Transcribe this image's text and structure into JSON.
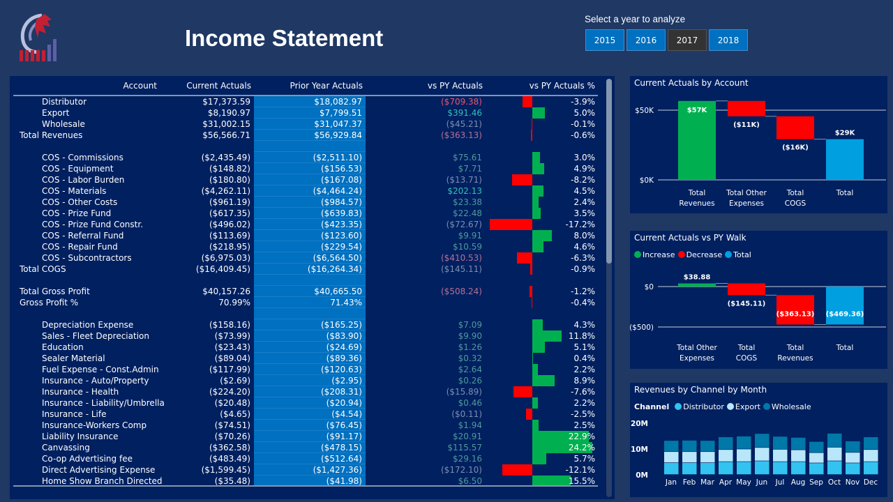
{
  "header": {
    "title": "Income Statement",
    "logo_alt": "company-logo"
  },
  "year_slicer": {
    "label": "Select a year to analyze",
    "years": [
      "2015",
      "2016",
      "2017",
      "2018"
    ],
    "selected": "2017"
  },
  "colors": {
    "pos_strong": "#33c0b8",
    "pos": "#4f9a9a",
    "neg_strong": "#e8566f",
    "neg_mid": "#b87095",
    "neg": "#7d8fb0",
    "increase": "#00b050",
    "decrease": "#ff0000",
    "total": "#009fe0",
    "distributor": "#33c3f0",
    "export": "#b8e6fa",
    "wholesale": "#0078a8"
  },
  "table": {
    "headers": {
      "account": "Account",
      "current": "Current Actuals",
      "prior": "Prior Year Actuals",
      "vs": "vs PY Actuals",
      "pct": "vs PY Actuals %"
    },
    "rows": [
      {
        "account": "Distributor",
        "current": "$17,373.59",
        "prior": "$18,082.97",
        "vs": "($709.38)",
        "vs_color": "neg_strong",
        "pct": "-3.9%",
        "pct_value": -3.9
      },
      {
        "account": "Export",
        "current": "$8,190.97",
        "prior": "$7,799.51",
        "vs": "$391.46",
        "vs_color": "pos_strong",
        "pct": "5.0%",
        "pct_value": 5.0
      },
      {
        "account": "Wholesale",
        "current": "$31,002.15",
        "prior": "$31,047.37",
        "vs": "($45.21)",
        "vs_color": "neg",
        "pct": "-0.1%",
        "pct_value": -0.1
      },
      {
        "account": "Total Revenues",
        "total": true,
        "current": "$56,566.71",
        "prior": "$56,929.84",
        "vs": "($363.13)",
        "vs_color": "neg_mid",
        "pct": "-0.6%",
        "pct_value": -0.6
      },
      {
        "blank": true
      },
      {
        "account": "COS - Commissions",
        "current": "($2,435.49)",
        "prior": "($2,511.10)",
        "vs": "$75.61",
        "vs_color": "pos",
        "pct": "3.0%",
        "pct_value": 3.0
      },
      {
        "account": "COS - Equipment",
        "current": "($148.82)",
        "prior": "($156.53)",
        "vs": "$7.71",
        "vs_color": "pos",
        "pct": "4.9%",
        "pct_value": 4.9
      },
      {
        "account": "COS - Labor Burden",
        "current": "($180.80)",
        "prior": "($167.08)",
        "vs": "($13.71)",
        "vs_color": "neg",
        "pct": "-8.2%",
        "pct_value": -8.2
      },
      {
        "account": "COS - Materials",
        "current": "($4,262.11)",
        "prior": "($4,464.24)",
        "vs": "$202.13",
        "vs_color": "pos_strong",
        "pct": "4.5%",
        "pct_value": 4.5
      },
      {
        "account": "COS - Other Costs",
        "current": "($961.19)",
        "prior": "($984.57)",
        "vs": "$23.38",
        "vs_color": "pos",
        "pct": "2.4%",
        "pct_value": 2.4
      },
      {
        "account": "COS - Prize Fund",
        "current": "($617.35)",
        "prior": "($639.83)",
        "vs": "$22.48",
        "vs_color": "pos",
        "pct": "3.5%",
        "pct_value": 3.5
      },
      {
        "account": "COS - Prize Fund Constr.",
        "current": "($496.02)",
        "prior": "($423.35)",
        "vs": "($72.67)",
        "vs_color": "neg",
        "pct": "-17.2%",
        "pct_value": -17.2
      },
      {
        "account": "COS - Referral Fund",
        "current": "($113.69)",
        "prior": "($123.60)",
        "vs": "$9.91",
        "vs_color": "pos",
        "pct": "8.0%",
        "pct_value": 8.0
      },
      {
        "account": "COS - Repair Fund",
        "current": "($218.95)",
        "prior": "($229.54)",
        "vs": "$10.59",
        "vs_color": "pos",
        "pct": "4.6%",
        "pct_value": 4.6
      },
      {
        "account": "COS - Subcontractors",
        "current": "($6,975.03)",
        "prior": "($6,564.50)",
        "vs": "($410.53)",
        "vs_color": "neg_mid",
        "pct": "-6.3%",
        "pct_value": -6.3
      },
      {
        "account": "Total COGS",
        "total": true,
        "current": "($16,409.45)",
        "prior": "($16,264.34)",
        "vs": "($145.11)",
        "vs_color": "neg",
        "pct": "-0.9%",
        "pct_value": -0.9
      },
      {
        "blank": true
      },
      {
        "account": "Total Gross Profit",
        "total": true,
        "current": "$40,157.26",
        "prior": "$40,665.50",
        "vs": "($508.24)",
        "vs_color": "neg_mid",
        "pct": "-1.2%",
        "pct_value": -1.2
      },
      {
        "account": "Gross Profit %",
        "total": true,
        "current": "70.99%",
        "prior": "71.43%",
        "vs": "",
        "vs_color": "neg",
        "pct": "-0.4%",
        "pct_value": -0.4
      },
      {
        "blank": true
      },
      {
        "account": "Depreciation Expense",
        "current": "($158.16)",
        "prior": "($165.25)",
        "vs": "$7.09",
        "vs_color": "pos",
        "pct": "4.3%",
        "pct_value": 4.3
      },
      {
        "account": "Sales - Fleet Depreciation",
        "current": "($73.99)",
        "prior": "($83.90)",
        "vs": "$9.90",
        "vs_color": "pos",
        "pct": "11.8%",
        "pct_value": 11.8
      },
      {
        "account": "Education",
        "current": "($23.43)",
        "prior": "($24.69)",
        "vs": "$1.26",
        "vs_color": "pos",
        "pct": "5.1%",
        "pct_value": 5.1
      },
      {
        "account": "Sealer Material",
        "current": "($89.04)",
        "prior": "($89.36)",
        "vs": "$0.32",
        "vs_color": "pos",
        "pct": "0.4%",
        "pct_value": 0.4
      },
      {
        "account": "Fuel Expense - Const.Admin",
        "current": "($117.99)",
        "prior": "($120.63)",
        "vs": "$2.64",
        "vs_color": "pos",
        "pct": "2.2%",
        "pct_value": 2.2
      },
      {
        "account": "Insurance - Auto/Property",
        "current": "($2.69)",
        "prior": "($2.95)",
        "vs": "$0.26",
        "vs_color": "pos",
        "pct": "8.9%",
        "pct_value": 8.9
      },
      {
        "account": "Insurance - Health",
        "current": "($224.20)",
        "prior": "($208.31)",
        "vs": "($15.89)",
        "vs_color": "neg",
        "pct": "-7.6%",
        "pct_value": -7.6
      },
      {
        "account": "Insurance - Liability/Umbrella",
        "current": "($20.48)",
        "prior": "($20.94)",
        "vs": "$0.46",
        "vs_color": "pos",
        "pct": "2.2%",
        "pct_value": 2.2
      },
      {
        "account": "Insurance - Life",
        "current": "($4.65)",
        "prior": "($4.54)",
        "vs": "($0.11)",
        "vs_color": "neg",
        "pct": "-2.5%",
        "pct_value": -2.5
      },
      {
        "account": "Insurance-Workers Comp",
        "current": "($74.51)",
        "prior": "($76.45)",
        "vs": "$1.94",
        "vs_color": "pos",
        "pct": "2.5%",
        "pct_value": 2.5
      },
      {
        "account": "Liability Insurance",
        "current": "($70.26)",
        "prior": "($91.17)",
        "vs": "$20.91",
        "vs_color": "pos",
        "pct": "22.9%",
        "pct_value": 22.9
      },
      {
        "account": "Canvassing",
        "current": "($362.58)",
        "prior": "($478.15)",
        "vs": "$115.57",
        "vs_color": "pos",
        "pct": "24.2%",
        "pct_value": 24.2
      },
      {
        "account": "Co-op Advertising fee",
        "current": "($483.49)",
        "prior": "($512.64)",
        "vs": "$29.16",
        "vs_color": "pos",
        "pct": "5.7%",
        "pct_value": 5.7
      },
      {
        "account": "Direct Advertising Expense",
        "current": "($1,599.45)",
        "prior": "($1,427.36)",
        "vs": "($172.10)",
        "vs_color": "neg",
        "pct": "-12.1%",
        "pct_value": -12.1
      },
      {
        "account": "Home Show Branch Directed",
        "current": "($35.48)",
        "prior": "($41.98)",
        "vs": "$6.50",
        "vs_color": "pos",
        "pct": "15.5%",
        "pct_value": 15.5
      }
    ]
  },
  "chart_data": [
    {
      "type": "waterfall",
      "title": "Current Actuals by Account",
      "categories": [
        "Total Revenues",
        "Total Other Expenses",
        "Total COGS",
        "Total"
      ],
      "values": [
        56.6,
        -11.0,
        -16.4,
        29.2
      ],
      "kinds": [
        "increase",
        "decrease",
        "decrease",
        "total"
      ],
      "labels": [
        "$57K",
        "($11K)",
        "($16K)",
        "$29K"
      ],
      "yticks": [
        {
          "v": 50,
          "label": "$50K"
        },
        {
          "v": 0,
          "label": "$0K"
        }
      ],
      "ylim": [
        0,
        62
      ],
      "unit": "K$"
    },
    {
      "type": "waterfall",
      "title": "Current Actuals vs PY Walk",
      "legend": [
        "Increase",
        "Decrease",
        "Total"
      ],
      "categories": [
        "Total Other Expenses",
        "Total COGS",
        "Total Revenues",
        "Total"
      ],
      "values": [
        38.88,
        -145.11,
        -363.13,
        -469.36
      ],
      "kinds": [
        "increase",
        "decrease",
        "decrease",
        "total"
      ],
      "labels": [
        "$38.88",
        "($145.11)",
        "($363.13)",
        "($469.36)"
      ],
      "yticks": [
        {
          "v": 0,
          "label": "$0"
        },
        {
          "v": -500,
          "label": "($500)"
        }
      ],
      "ylim": [
        -500,
        0
      ],
      "unit": "$"
    },
    {
      "type": "stacked-bar",
      "title": "Revenues by Channel by Month",
      "legend_title": "Channel",
      "categories": [
        "Jan",
        "Feb",
        "Mar",
        "Apr",
        "May",
        "Jun",
        "Jul",
        "Aug",
        "Sep",
        "Oct",
        "Nov",
        "Dec"
      ],
      "series": [
        {
          "name": "Distributor",
          "values": [
            4.6,
            4.6,
            4.6,
            5.0,
            5.0,
            5.3,
            5.0,
            5.0,
            4.5,
            5.3,
            4.5,
            5.0
          ]
        },
        {
          "name": "Export",
          "values": [
            4.3,
            4.3,
            4.3,
            4.7,
            4.9,
            5.2,
            4.8,
            4.6,
            4.0,
            5.3,
            4.1,
            4.7
          ]
        },
        {
          "name": "Wholesale",
          "values": [
            4.3,
            4.4,
            4.3,
            4.9,
            5.0,
            5.4,
            5.0,
            4.8,
            4.3,
            5.4,
            4.4,
            4.9
          ]
        }
      ],
      "yticks": [
        {
          "v": 20,
          "label": "20M"
        },
        {
          "v": 10,
          "label": "10M"
        },
        {
          "v": 0,
          "label": "0M"
        }
      ],
      "ylim": [
        0,
        20
      ],
      "unit": "M"
    }
  ]
}
